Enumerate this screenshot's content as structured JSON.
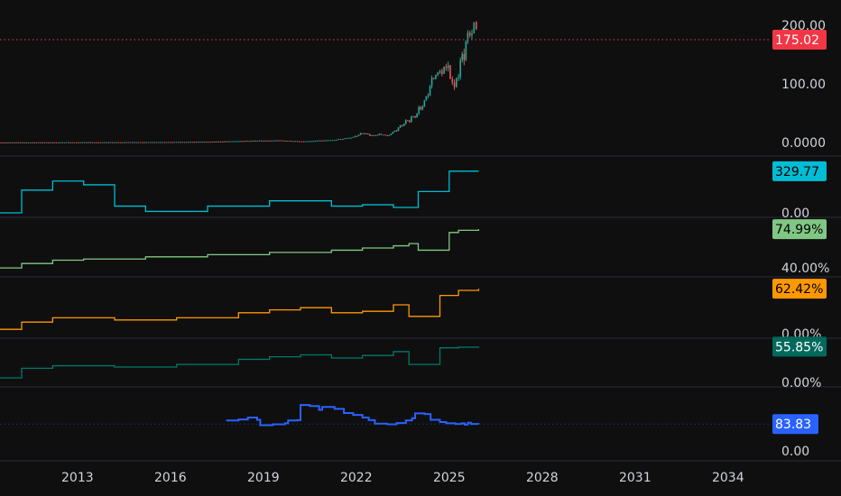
{
  "colors": {
    "background": "#0f0f0f",
    "pane_separator": "#2a2e39",
    "axis_text": "#d1d4dc",
    "candle_up": "#26a69a",
    "candle_down": "#ef5350",
    "last_price": "#f23645",
    "cyan": "#00bcd4",
    "green_light": "#81c784",
    "orange": "#ff9800",
    "teal": "#00796b",
    "blue": "#2962ff"
  },
  "chart_data": {
    "type": "line",
    "time_axis": {
      "ticks": [
        "2013",
        "2016",
        "2019",
        "2022",
        "2025",
        "2028",
        "2031",
        "2034"
      ],
      "domain": [
        2010.5,
        2035.2
      ]
    },
    "panes": [
      {
        "id": "price",
        "kind": "candles",
        "scale_ticks": [
          {
            "label": "200.00",
            "value": 200
          },
          {
            "label": "100.00",
            "value": 100
          },
          {
            "label": "0.0000",
            "value": 0
          }
        ],
        "ylim": [
          0,
          215
        ],
        "last_value": {
          "label": "175.02",
          "value": 175.02,
          "color": "#f23645",
          "text_color": "#ffffff",
          "dotted": true
        },
        "series": [
          {
            "x": 2010.5,
            "y": 0.1
          },
          {
            "x": 2012.0,
            "y": 0.2
          },
          {
            "x": 2014.0,
            "y": 0.4
          },
          {
            "x": 2016.0,
            "y": 0.7
          },
          {
            "x": 2017.5,
            "y": 1.5
          },
          {
            "x": 2018.5,
            "y": 2.8
          },
          {
            "x": 2019.5,
            "y": 3.5
          },
          {
            "x": 2020.3,
            "y": 1.8
          },
          {
            "x": 2020.8,
            "y": 3.2
          },
          {
            "x": 2021.3,
            "y": 4.5
          },
          {
            "x": 2021.9,
            "y": 9.0
          },
          {
            "x": 2022.2,
            "y": 16.0
          },
          {
            "x": 2022.5,
            "y": 12.0
          },
          {
            "x": 2022.8,
            "y": 14.0
          },
          {
            "x": 2023.0,
            "y": 11.0
          },
          {
            "x": 2023.3,
            "y": 22.0
          },
          {
            "x": 2023.6,
            "y": 35.0
          },
          {
            "x": 2023.9,
            "y": 45.0
          },
          {
            "x": 2024.2,
            "y": 70.0
          },
          {
            "x": 2024.5,
            "y": 110.0
          },
          {
            "x": 2024.7,
            "y": 118.0
          },
          {
            "x": 2024.9,
            "y": 135.0
          },
          {
            "x": 2025.1,
            "y": 95.0
          },
          {
            "x": 2025.3,
            "y": 120.0
          },
          {
            "x": 2025.6,
            "y": 180.0
          },
          {
            "x": 2025.8,
            "y": 205.0
          },
          {
            "x": 2025.95,
            "y": 175.02
          }
        ]
      },
      {
        "id": "indicator-1",
        "kind": "step",
        "color": "#00bcd4",
        "scale_ticks": [
          {
            "label": "0.00",
            "value": 0
          }
        ],
        "ylim": [
          0,
          400
        ],
        "last_value": {
          "label": "329.77",
          "value": 329.77,
          "color": "#00bcd4",
          "text_color": "#000000"
        },
        "series": [
          {
            "x": 2010.5,
            "y": 0
          },
          {
            "x": 2011.2,
            "y": 180
          },
          {
            "x": 2012.2,
            "y": 252
          },
          {
            "x": 2013.2,
            "y": 222
          },
          {
            "x": 2014.2,
            "y": 53
          },
          {
            "x": 2015.2,
            "y": 11
          },
          {
            "x": 2017.2,
            "y": 53
          },
          {
            "x": 2019.2,
            "y": 95
          },
          {
            "x": 2021.2,
            "y": 53
          },
          {
            "x": 2022.2,
            "y": 64
          },
          {
            "x": 2023.2,
            "y": 43
          },
          {
            "x": 2024.0,
            "y": 169
          },
          {
            "x": 2025.0,
            "y": 329.77
          },
          {
            "x": 2025.95,
            "y": 329.77
          }
        ]
      },
      {
        "id": "indicator-2",
        "kind": "step",
        "color": "#81c784",
        "scale_ticks": [
          {
            "label": "40.00%",
            "value": 40
          }
        ],
        "ylim": [
          36,
          80
        ],
        "last_value": {
          "label": "74.99%",
          "value": 74.99,
          "color": "#81c784",
          "text_color": "#000000"
        },
        "series": [
          {
            "x": 2010.5,
            "y": 40
          },
          {
            "x": 2011.2,
            "y": 44
          },
          {
            "x": 2012.2,
            "y": 47
          },
          {
            "x": 2013.2,
            "y": 48
          },
          {
            "x": 2015.2,
            "y": 50
          },
          {
            "x": 2017.2,
            "y": 52
          },
          {
            "x": 2019.2,
            "y": 54
          },
          {
            "x": 2021.2,
            "y": 56
          },
          {
            "x": 2022.2,
            "y": 58
          },
          {
            "x": 2023.2,
            "y": 60
          },
          {
            "x": 2023.7,
            "y": 62
          },
          {
            "x": 2024.0,
            "y": 56
          },
          {
            "x": 2025.0,
            "y": 72
          },
          {
            "x": 2025.3,
            "y": 74
          },
          {
            "x": 2025.95,
            "y": 74.99
          }
        ]
      },
      {
        "id": "indicator-3",
        "kind": "step",
        "color": "#ff9800",
        "scale_ticks": [
          {
            "label": "0.00%",
            "value": 0
          }
        ],
        "ylim": [
          0,
          70
        ],
        "last_value": {
          "label": "62.42%",
          "value": 62.42,
          "color": "#ff9800",
          "text_color": "#000000"
        },
        "series": [
          {
            "x": 2010.5,
            "y": 6
          },
          {
            "x": 2011.2,
            "y": 16
          },
          {
            "x": 2012.2,
            "y": 22
          },
          {
            "x": 2014.2,
            "y": 19
          },
          {
            "x": 2016.2,
            "y": 22
          },
          {
            "x": 2018.2,
            "y": 29
          },
          {
            "x": 2019.2,
            "y": 33
          },
          {
            "x": 2020.2,
            "y": 36
          },
          {
            "x": 2021.2,
            "y": 29
          },
          {
            "x": 2022.2,
            "y": 31
          },
          {
            "x": 2023.2,
            "y": 40
          },
          {
            "x": 2023.7,
            "y": 24
          },
          {
            "x": 2024.7,
            "y": 53
          },
          {
            "x": 2025.3,
            "y": 60
          },
          {
            "x": 2025.95,
            "y": 62.42
          }
        ]
      },
      {
        "id": "indicator-4",
        "kind": "step",
        "color": "#00796b",
        "scale_ticks": [
          {
            "label": "0.00%",
            "value": 0
          }
        ],
        "ylim": [
          0,
          62
        ],
        "last_value": {
          "label": "55.85%",
          "value": 55.85,
          "color": "#00695c",
          "text_color": "#ffffff"
        },
        "series": [
          {
            "x": 2010.5,
            "y": 7
          },
          {
            "x": 2011.2,
            "y": 22
          },
          {
            "x": 2012.2,
            "y": 26
          },
          {
            "x": 2014.2,
            "y": 24
          },
          {
            "x": 2016.2,
            "y": 28
          },
          {
            "x": 2018.2,
            "y": 36
          },
          {
            "x": 2019.2,
            "y": 40
          },
          {
            "x": 2020.2,
            "y": 43
          },
          {
            "x": 2021.2,
            "y": 38
          },
          {
            "x": 2022.2,
            "y": 42
          },
          {
            "x": 2023.2,
            "y": 48
          },
          {
            "x": 2023.7,
            "y": 28
          },
          {
            "x": 2024.7,
            "y": 54
          },
          {
            "x": 2025.3,
            "y": 55
          },
          {
            "x": 2025.95,
            "y": 55.85
          }
        ]
      },
      {
        "id": "indicator-5",
        "kind": "line",
        "color": "#2962ff",
        "scale_ticks": [
          {
            "label": "0.00",
            "value": 0
          }
        ],
        "ylim": [
          0,
          180
        ],
        "last_value": {
          "label": "83.83",
          "value": 83.83,
          "color": "#2962ff",
          "text_color": "#ffffff",
          "dotted": true
        },
        "series": [
          {
            "x": 2017.8,
            "y": 95
          },
          {
            "x": 2018.2,
            "y": 98
          },
          {
            "x": 2018.5,
            "y": 104
          },
          {
            "x": 2018.8,
            "y": 97
          },
          {
            "x": 2018.9,
            "y": 80
          },
          {
            "x": 2019.3,
            "y": 83
          },
          {
            "x": 2019.7,
            "y": 86
          },
          {
            "x": 2019.8,
            "y": 95
          },
          {
            "x": 2020.1,
            "y": 96
          },
          {
            "x": 2020.2,
            "y": 143
          },
          {
            "x": 2020.5,
            "y": 140
          },
          {
            "x": 2020.8,
            "y": 128
          },
          {
            "x": 2020.9,
            "y": 137
          },
          {
            "x": 2021.3,
            "y": 131
          },
          {
            "x": 2021.6,
            "y": 118
          },
          {
            "x": 2021.9,
            "y": 112
          },
          {
            "x": 2022.2,
            "y": 104
          },
          {
            "x": 2022.4,
            "y": 96
          },
          {
            "x": 2022.6,
            "y": 85
          },
          {
            "x": 2023.0,
            "y": 83
          },
          {
            "x": 2023.3,
            "y": 87
          },
          {
            "x": 2023.6,
            "y": 95
          },
          {
            "x": 2023.8,
            "y": 102
          },
          {
            "x": 2023.9,
            "y": 117
          },
          {
            "x": 2024.2,
            "y": 115
          },
          {
            "x": 2024.4,
            "y": 97
          },
          {
            "x": 2024.7,
            "y": 90
          },
          {
            "x": 2024.9,
            "y": 86
          },
          {
            "x": 2025.2,
            "y": 84
          },
          {
            "x": 2025.4,
            "y": 86
          },
          {
            "x": 2025.5,
            "y": 82
          },
          {
            "x": 2025.6,
            "y": 88
          },
          {
            "x": 2025.7,
            "y": 84
          },
          {
            "x": 2025.95,
            "y": 83.83
          }
        ]
      }
    ]
  }
}
